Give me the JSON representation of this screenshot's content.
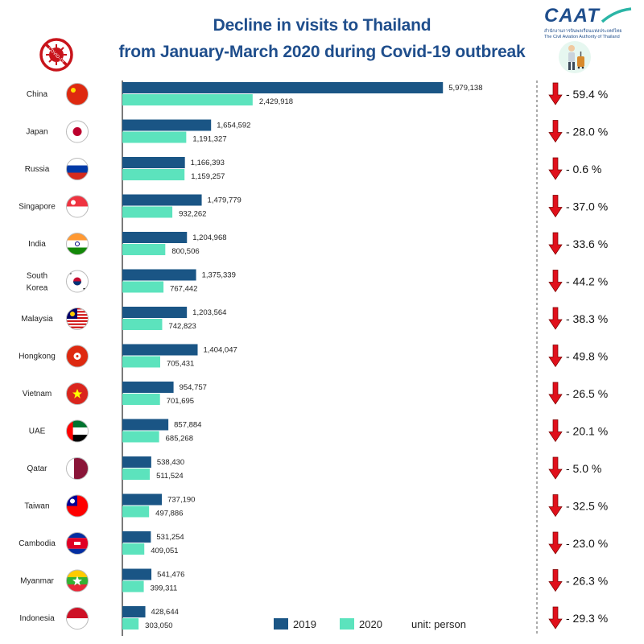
{
  "header": {
    "title_line1": "Decline in visits to Thailand",
    "title_line2": "from January-March 2020 during Covid-19 outbreak"
  },
  "logo": {
    "text": "CAAT",
    "subtitle_th": "สำนักงานการบินพลเรือนแห่งประเทศไทย",
    "subtitle_en": "The Civil Aviation Authority of Thailand"
  },
  "covid_icon": {
    "label": "COVID-19",
    "color": "#c8141b"
  },
  "legend": {
    "label_2019": "2019",
    "label_2020": "2020",
    "unit": "unit: person"
  },
  "colors": {
    "bar_2019": "#1a5585",
    "bar_2020": "#5ce3bd",
    "arrow": "#e0101b",
    "axis": "#333333",
    "divider": "#555555"
  },
  "chart_data": {
    "type": "bar",
    "orientation": "horizontal",
    "categories": [
      "China",
      "Japan",
      "Russia",
      "Singapore",
      "India",
      "South Korea",
      "Malaysia",
      "Hongkong",
      "Vietnam",
      "UAE",
      "Qatar",
      "Taiwan",
      "Cambodia",
      "Myanmar",
      "Indonesia"
    ],
    "series": [
      {
        "name": "2019",
        "values": [
          5979138,
          1654592,
          1166393,
          1479779,
          1204968,
          1375339,
          1203564,
          1404047,
          954757,
          857884,
          538430,
          737190,
          531254,
          541476,
          428644
        ],
        "labels": [
          "5,979,138",
          "1,654,592",
          "1,166,393",
          "1,479,779",
          "1,204,968",
          "1,375,339",
          "1,203,564",
          "1,404,047",
          "954,757",
          "857,884",
          "538,430",
          "737,190",
          "531,254",
          "541,476",
          "428,644"
        ]
      },
      {
        "name": "2020",
        "values": [
          2429918,
          1191327,
          1159257,
          932262,
          800506,
          767442,
          742823,
          705431,
          701695,
          685268,
          511524,
          497886,
          409051,
          399311,
          303050
        ],
        "labels": [
          "2,429,918",
          "1,191,327",
          "1,159,257",
          "932,262",
          "800,506",
          "767,442",
          "742,823",
          "705,431",
          "701,695",
          "685,268",
          "511,524",
          "497,886",
          "409,051",
          "399,311",
          "303,050"
        ]
      }
    ],
    "change_pct": [
      -59.4,
      -28.0,
      -0.6,
      -37.0,
      -33.6,
      -44.2,
      -38.3,
      -49.8,
      -26.5,
      -20.1,
      -5.0,
      -32.5,
      -23.0,
      -26.3,
      -29.3
    ],
    "change_labels": [
      "- 59.4 %",
      "- 28.0 %",
      "- 0.6 %",
      "- 37.0 %",
      "- 33.6 %",
      "- 44.2 %",
      "- 38.3 %",
      "- 49.8 %",
      "- 26.5 %",
      "- 20.1 %",
      "- 5.0 %",
      "- 32.5 %",
      "- 23.0 %",
      "- 26.3 %",
      "- 29.3 %"
    ],
    "flags": [
      "china-flag",
      "japan-flag",
      "russia-flag",
      "singapore-flag",
      "india-flag",
      "south-korea-flag",
      "malaysia-flag",
      "hongkong-flag",
      "vietnam-flag",
      "uae-flag",
      "qatar-flag",
      "taiwan-flag",
      "cambodia-flag",
      "myanmar-flag",
      "indonesia-flag"
    ],
    "xlim": [
      0,
      6000000
    ],
    "grid": false,
    "legend_position": "bottom"
  }
}
